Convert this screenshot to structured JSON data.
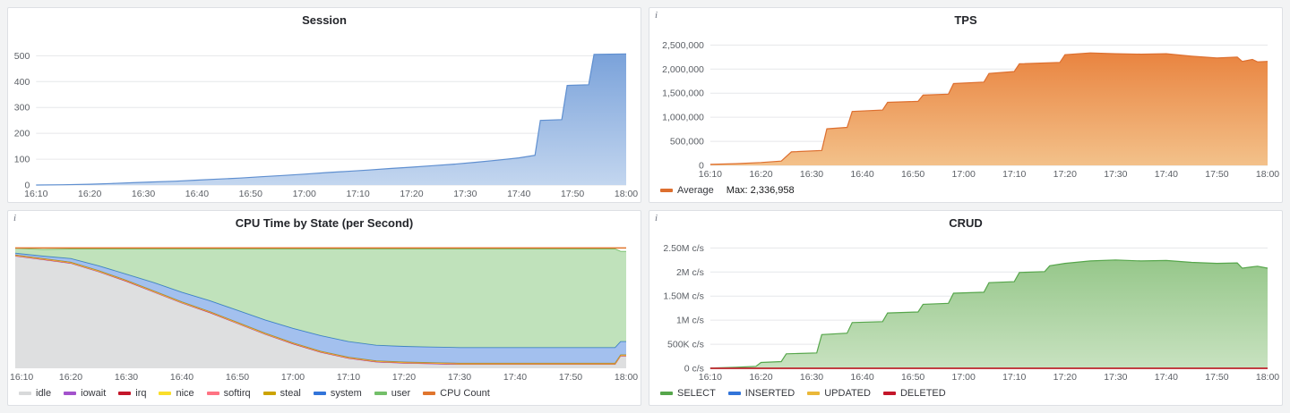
{
  "page": {
    "background": "#f2f3f4",
    "panel_background": "#ffffff",
    "panel_border": "#dde0e4"
  },
  "panels": [
    {
      "title": "Session"
    },
    {
      "title": "TPS",
      "info_glyph": "i"
    },
    {
      "title": "CPU Time by State (per Second)",
      "info_glyph": "i"
    },
    {
      "title": "CRUD",
      "info_glyph": "i"
    }
  ],
  "chart_data": [
    {
      "type": "area",
      "title": "Session",
      "x_axis": "time",
      "x_range": [
        0,
        110
      ],
      "ylim": [
        0,
        560
      ],
      "grid": true,
      "x_ticks": [
        {
          "v": 0,
          "label": "16:10"
        },
        {
          "v": 10,
          "label": "16:20"
        },
        {
          "v": 20,
          "label": "16:30"
        },
        {
          "v": 30,
          "label": "16:40"
        },
        {
          "v": 40,
          "label": "16:50"
        },
        {
          "v": 50,
          "label": "17:00"
        },
        {
          "v": 60,
          "label": "17:10"
        },
        {
          "v": 70,
          "label": "17:20"
        },
        {
          "v": 80,
          "label": "17:30"
        },
        {
          "v": 90,
          "label": "17:40"
        },
        {
          "v": 100,
          "label": "17:50"
        },
        {
          "v": 110,
          "label": "18:00"
        }
      ],
      "y_ticks": [
        {
          "v": 0,
          "label": "0"
        },
        {
          "v": 100,
          "label": "100"
        },
        {
          "v": 200,
          "label": "200"
        },
        {
          "v": 300,
          "label": "300"
        },
        {
          "v": 400,
          "label": "400"
        },
        {
          "v": 500,
          "label": "500"
        }
      ],
      "x": [
        0,
        5,
        10,
        14,
        18,
        22,
        26,
        30,
        34,
        38,
        42,
        46,
        50,
        54,
        58,
        62,
        66,
        70,
        74,
        78,
        82,
        86,
        90,
        93,
        94,
        98,
        99,
        103,
        104,
        110
      ],
      "series": [
        {
          "name": "sessions",
          "line_color": "#5f8fd0",
          "color": "#7aa2da",
          "gradient": [
            "#7aa2da",
            "#c3d6ef"
          ],
          "values": [
            0,
            1,
            3,
            6,
            9,
            12,
            15,
            19,
            23,
            27,
            32,
            37,
            42,
            48,
            53,
            58,
            64,
            69,
            75,
            81,
            88,
            96,
            105,
            115,
            250,
            253,
            385,
            388,
            505,
            507
          ]
        }
      ],
      "legend": []
    },
    {
      "type": "area",
      "title": "TPS",
      "x_axis": "time",
      "x_range": [
        0,
        110
      ],
      "ylim": [
        0,
        2600000
      ],
      "grid": true,
      "x_ticks": [
        {
          "v": 0,
          "label": "16:10"
        },
        {
          "v": 10,
          "label": "16:20"
        },
        {
          "v": 20,
          "label": "16:30"
        },
        {
          "v": 30,
          "label": "16:40"
        },
        {
          "v": 40,
          "label": "16:50"
        },
        {
          "v": 50,
          "label": "17:00"
        },
        {
          "v": 60,
          "label": "17:10"
        },
        {
          "v": 70,
          "label": "17:20"
        },
        {
          "v": 80,
          "label": "17:30"
        },
        {
          "v": 90,
          "label": "17:40"
        },
        {
          "v": 100,
          "label": "17:50"
        },
        {
          "v": 110,
          "label": "18:00"
        }
      ],
      "y_ticks": [
        {
          "v": 0,
          "label": "0"
        },
        {
          "v": 500000,
          "label": "500,000"
        },
        {
          "v": 1000000,
          "label": "1,000,000"
        },
        {
          "v": 1500000,
          "label": "1,500,000"
        },
        {
          "v": 2000000,
          "label": "2,000,000"
        },
        {
          "v": 2500000,
          "label": "2,500,000"
        }
      ],
      "x": [
        0,
        5,
        10,
        14,
        16,
        22,
        23,
        27,
        28,
        34,
        35,
        41,
        42,
        47,
        48,
        54,
        55,
        60,
        61,
        69,
        70,
        75,
        80,
        85,
        90,
        95,
        100,
        104,
        105,
        107,
        108,
        110
      ],
      "series": [
        {
          "name": "Average",
          "line_color": "#dd6f2f",
          "color": "#e98440",
          "gradient": [
            "#e98440",
            "#f3c18a"
          ],
          "values": [
            20000,
            35000,
            60000,
            90000,
            280000,
            310000,
            760000,
            790000,
            1120000,
            1150000,
            1310000,
            1330000,
            1460000,
            1480000,
            1700000,
            1730000,
            1910000,
            1950000,
            2110000,
            2140000,
            2300000,
            2336958,
            2320000,
            2310000,
            2320000,
            2270000,
            2230000,
            2250000,
            2160000,
            2200000,
            2150000,
            2160000
          ]
        }
      ],
      "legend": [
        {
          "label": "Average",
          "color": "#dd6f2f",
          "extra": "Max: 2,336,958"
        }
      ]
    },
    {
      "type": "stacked_area",
      "stacked": true,
      "title": "CPU Time by State (per Second)",
      "x_axis": "time",
      "x_range": [
        0,
        110
      ],
      "ylim": [
        0,
        104
      ],
      "grid": false,
      "x_ticks": [
        {
          "v": 0,
          "label": "16:10"
        },
        {
          "v": 10,
          "label": "16:20"
        },
        {
          "v": 20,
          "label": "16:30"
        },
        {
          "v": 30,
          "label": "16:40"
        },
        {
          "v": 40,
          "label": "16:50"
        },
        {
          "v": 50,
          "label": "17:00"
        },
        {
          "v": 60,
          "label": "17:10"
        },
        {
          "v": 70,
          "label": "17:20"
        },
        {
          "v": 80,
          "label": "17:30"
        },
        {
          "v": 90,
          "label": "17:40"
        },
        {
          "v": 100,
          "label": "17:50"
        },
        {
          "v": 110,
          "label": "18:00"
        }
      ],
      "y_ticks": [],
      "x": [
        0,
        5,
        10,
        15,
        20,
        25,
        30,
        35,
        40,
        45,
        50,
        55,
        60,
        65,
        70,
        75,
        80,
        85,
        90,
        95,
        100,
        105,
        108,
        109,
        110
      ],
      "series": [
        {
          "name": "idle",
          "color": "#D8D9DA",
          "fill_opacity": 0.85,
          "values": [
            93,
            90,
            87,
            80,
            72,
            63,
            54,
            46,
            37,
            28,
            20,
            13,
            8,
            5,
            4,
            3.5,
            3,
            3,
            3,
            3,
            3,
            3,
            3,
            10,
            10
          ]
        },
        {
          "name": "iowait",
          "color": "#A352CC",
          "fill_opacity": 0.6,
          "values": [
            0.3,
            0.3,
            0.3,
            0.3,
            0.3,
            0.3,
            0.3,
            0.3,
            0.3,
            0.3,
            0.3,
            0.3,
            0.3,
            0.3,
            0.3,
            0.3,
            0.3,
            0.3,
            0.3,
            0.3,
            0.3,
            0.3,
            0.3,
            0.3,
            0.3
          ]
        },
        {
          "name": "irq",
          "color": "#C4162A",
          "fill_opacity": 0.6,
          "values": [
            0.2,
            0.2,
            0.2,
            0.2,
            0.2,
            0.2,
            0.2,
            0.2,
            0.2,
            0.2,
            0.2,
            0.2,
            0.2,
            0.2,
            0.2,
            0.2,
            0.2,
            0.2,
            0.2,
            0.2,
            0.2,
            0.2,
            0.2,
            0.2,
            0.2
          ]
        },
        {
          "name": "nice",
          "color": "#FADE2A",
          "fill_opacity": 0.6,
          "values": [
            0.2,
            0.2,
            0.2,
            0.2,
            0.2,
            0.2,
            0.2,
            0.2,
            0.2,
            0.2,
            0.2,
            0.2,
            0.2,
            0.2,
            0.2,
            0.2,
            0.2,
            0.2,
            0.2,
            0.2,
            0.2,
            0.2,
            0.2,
            0.2,
            0.2
          ]
        },
        {
          "name": "softirq",
          "color": "#FF7383",
          "fill_opacity": 0.6,
          "values": [
            0.3,
            0.3,
            0.3,
            0.3,
            0.3,
            0.3,
            0.3,
            0.3,
            0.3,
            0.3,
            0.3,
            0.3,
            0.3,
            0.3,
            0.3,
            0.3,
            0.3,
            0.3,
            0.3,
            0.3,
            0.3,
            0.3,
            0.3,
            0.3,
            0.3
          ]
        },
        {
          "name": "steal",
          "color": "#CCA300",
          "fill_opacity": 0.6,
          "values": [
            0.2,
            0.2,
            0.2,
            0.2,
            0.2,
            0.2,
            0.2,
            0.2,
            0.2,
            0.2,
            0.2,
            0.2,
            0.2,
            0.2,
            0.2,
            0.2,
            0.2,
            0.2,
            0.2,
            0.2,
            0.2,
            0.2,
            0.2,
            0.2,
            0.2
          ]
        },
        {
          "name": "system",
          "color": "#3274D9",
          "fill_opacity": 0.45,
          "values": [
            1.5,
            2,
            3,
            4,
            5,
            7,
            8,
            9,
            10,
            11,
            12,
            13,
            13,
            13,
            13,
            13,
            13,
            13,
            13,
            13,
            13,
            13,
            13,
            11,
            11
          ]
        },
        {
          "name": "user",
          "color": "#73BF69",
          "fill_opacity": 0.45,
          "values": [
            4,
            5.5,
            8,
            14,
            21,
            28,
            36,
            43,
            51,
            59,
            66,
            72,
            77,
            80,
            81,
            81.5,
            82,
            82,
            82,
            82,
            82,
            82,
            82,
            75,
            75
          ]
        },
        {
          "name": "CPU Count",
          "type": "line",
          "color": "#E0752D",
          "values": [
            100,
            100,
            100,
            100,
            100,
            100,
            100,
            100,
            100,
            100,
            100,
            100,
            100,
            100,
            100,
            100,
            100,
            100,
            100,
            100,
            100,
            100,
            100,
            100,
            100
          ]
        }
      ],
      "legend": [
        {
          "label": "idle",
          "color": "#D8D9DA"
        },
        {
          "label": "iowait",
          "color": "#A352CC"
        },
        {
          "label": "irq",
          "color": "#C4162A"
        },
        {
          "label": "nice",
          "color": "#FADE2A"
        },
        {
          "label": "softirq",
          "color": "#FF7383"
        },
        {
          "label": "steal",
          "color": "#CCA300"
        },
        {
          "label": "system",
          "color": "#3274D9"
        },
        {
          "label": "user",
          "color": "#73BF69"
        },
        {
          "label": "CPU Count",
          "color": "#E0752D"
        }
      ]
    },
    {
      "type": "area",
      "title": "CRUD",
      "x_axis": "time",
      "x_range": [
        0,
        110
      ],
      "ylim": [
        0,
        2600000
      ],
      "grid": true,
      "x_ticks": [
        {
          "v": 0,
          "label": "16:10"
        },
        {
          "v": 10,
          "label": "16:20"
        },
        {
          "v": 20,
          "label": "16:30"
        },
        {
          "v": 30,
          "label": "16:40"
        },
        {
          "v": 40,
          "label": "16:50"
        },
        {
          "v": 50,
          "label": "17:00"
        },
        {
          "v": 60,
          "label": "17:10"
        },
        {
          "v": 70,
          "label": "17:20"
        },
        {
          "v": 80,
          "label": "17:30"
        },
        {
          "v": 90,
          "label": "17:40"
        },
        {
          "v": 100,
          "label": "17:50"
        },
        {
          "v": 110,
          "label": "18:00"
        }
      ],
      "y_ticks": [
        {
          "v": 0,
          "label": "0 c/s"
        },
        {
          "v": 500000,
          "label": "500K c/s"
        },
        {
          "v": 1000000,
          "label": "1M c/s"
        },
        {
          "v": 1500000,
          "label": "1.50M c/s"
        },
        {
          "v": 2000000,
          "label": "2M c/s"
        },
        {
          "v": 2500000,
          "label": "2.50M c/s"
        }
      ],
      "x": [
        0,
        5,
        9,
        10,
        14,
        15,
        21,
        22,
        27,
        28,
        34,
        35,
        41,
        42,
        47,
        48,
        54,
        55,
        60,
        61,
        66,
        67,
        70,
        75,
        80,
        85,
        90,
        95,
        100,
        104,
        105,
        108,
        110
      ],
      "series": [
        {
          "name": "SELECT",
          "line_color": "#56A64B",
          "color": "#8cc383",
          "gradient": [
            "#96c78a",
            "#c8e2c0"
          ],
          "values": [
            5000,
            20000,
            40000,
            120000,
            140000,
            300000,
            320000,
            700000,
            730000,
            950000,
            970000,
            1150000,
            1170000,
            1330000,
            1350000,
            1560000,
            1580000,
            1780000,
            1800000,
            1990000,
            2010000,
            2130000,
            2180000,
            2230000,
            2250000,
            2230000,
            2240000,
            2200000,
            2180000,
            2190000,
            2080000,
            2120000,
            2080000
          ]
        },
        {
          "name": "INSERTED",
          "type": "line",
          "color": "#3274D9",
          "values": [
            0,
            0,
            0,
            0,
            0,
            0,
            0,
            0,
            0,
            0,
            0,
            0,
            0,
            0,
            0,
            0,
            0,
            0,
            0,
            0,
            0,
            0,
            0,
            0,
            0,
            0,
            0,
            0,
            0,
            0,
            0,
            0,
            0
          ]
        },
        {
          "name": "UPDATED",
          "type": "line",
          "color": "#EAB839",
          "values": [
            0,
            0,
            0,
            0,
            0,
            0,
            0,
            0,
            0,
            0,
            0,
            0,
            0,
            0,
            0,
            0,
            0,
            0,
            0,
            0,
            0,
            0,
            0,
            0,
            0,
            0,
            0,
            0,
            0,
            0,
            0,
            0,
            0
          ]
        },
        {
          "name": "DELETED",
          "type": "line",
          "color": "#C4162A",
          "values": [
            0,
            0,
            0,
            0,
            0,
            0,
            0,
            0,
            0,
            0,
            0,
            0,
            0,
            0,
            0,
            0,
            0,
            0,
            0,
            0,
            0,
            0,
            0,
            0,
            0,
            0,
            0,
            0,
            0,
            0,
            0,
            0,
            0
          ]
        }
      ],
      "legend": [
        {
          "label": "SELECT",
          "color": "#56A64B"
        },
        {
          "label": "INSERTED",
          "color": "#3274D9"
        },
        {
          "label": "UPDATED",
          "color": "#EAB839"
        },
        {
          "label": "DELETED",
          "color": "#C4162A"
        }
      ]
    }
  ]
}
